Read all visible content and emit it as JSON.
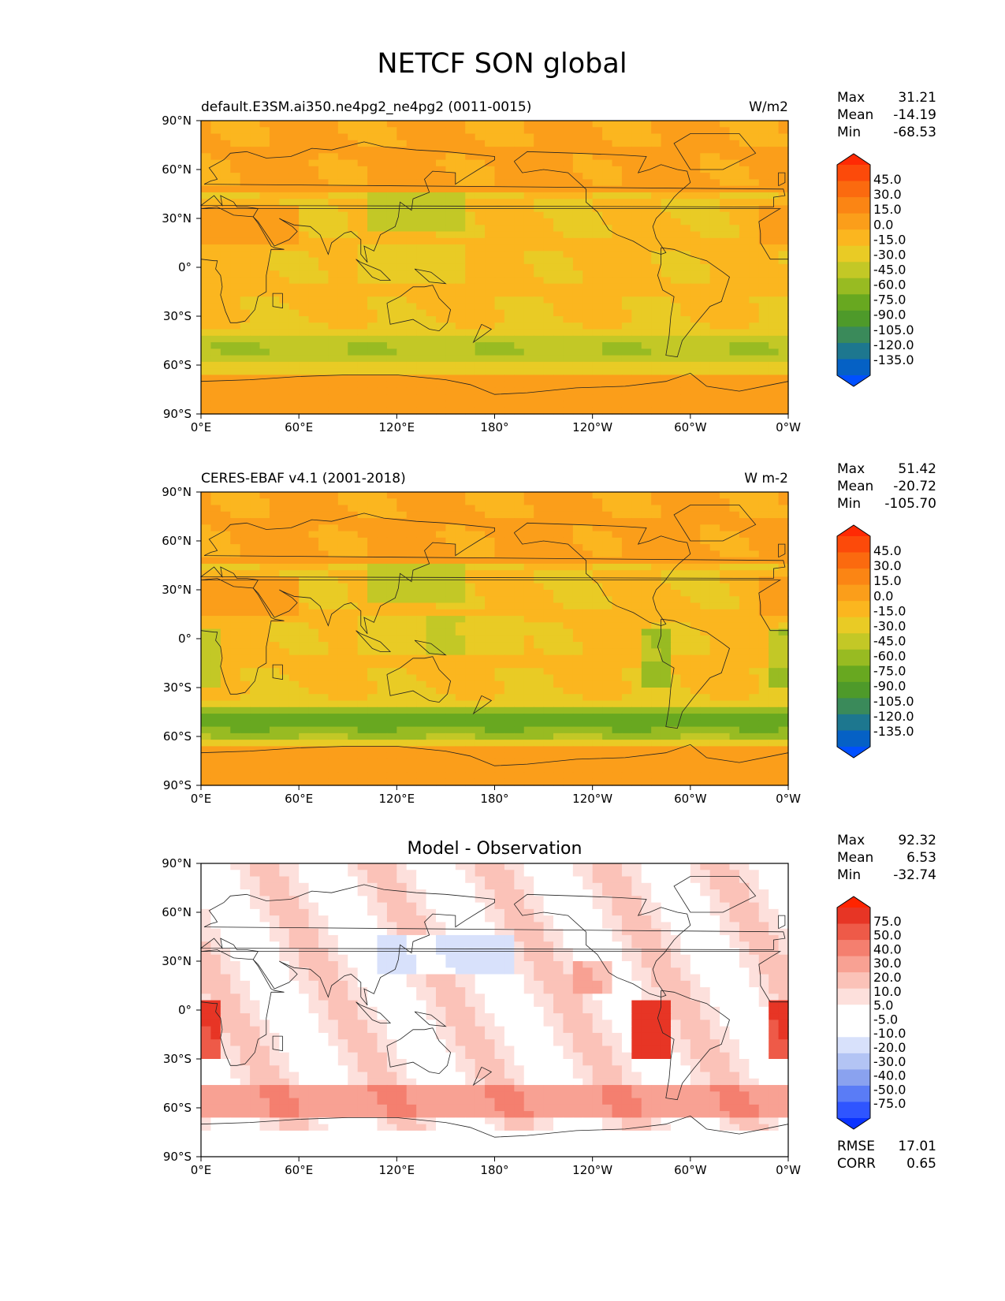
{
  "title": "NETCF SON global",
  "lon_ticks": [
    "0°E",
    "60°E",
    "120°E",
    "180°",
    "120°W",
    "60°W",
    "0°W"
  ],
  "lat_ticks": [
    "90°N",
    "60°N",
    "30°N",
    "0°",
    "30°S",
    "60°S",
    "90°S"
  ],
  "stat_labels": {
    "max": "Max",
    "mean": "Mean",
    "min": "Min",
    "rmse": "RMSE",
    "corr": "CORR"
  },
  "colors": {
    "main_cmap": [
      "#0050ff",
      "#0561c5",
      "#1d778f",
      "#3a8a5a",
      "#4e9a2a",
      "#68a820",
      "#98bb22",
      "#c3c826",
      "#e9cb25",
      "#fbb61f",
      "#fb9e1a",
      "#fb8514",
      "#fb6a0f",
      "#fc4a0a",
      "#ff2a04"
    ],
    "diff_cmap": [
      "#0a32ff",
      "#2f55ff",
      "#5a7cf6",
      "#8aa2ef",
      "#b3c4f4",
      "#d8e1fb",
      "#ffffff",
      "#ffffff",
      "#fde0dc",
      "#fbc2b8",
      "#f8a193",
      "#f47f6f",
      "#ee5a48",
      "#e73525",
      "#ff2400"
    ]
  },
  "chart_data": [
    {
      "type": "heatmap",
      "left_title": "default.E3SM.ai350.ne4pg2_ne4pg2 (0011-0015)",
      "right_title": "W/m2",
      "center_title": "",
      "stats": {
        "max": "31.21",
        "mean": "-14.19",
        "min": "-68.53"
      },
      "colorbar_ticks": [
        "45.0",
        "30.0",
        "15.0",
        "0.0",
        "-15.0",
        "-30.0",
        "-45.0",
        "-60.0",
        "-75.0",
        "-90.0",
        "-105.0",
        "-120.0",
        "-135.0"
      ],
      "levels": [
        -135,
        -120,
        -105,
        -90,
        -75,
        -60,
        -45,
        -30,
        -15,
        0,
        15,
        30,
        45
      ]
    },
    {
      "type": "heatmap",
      "left_title": "CERES-EBAF v4.1 (2001-2018)",
      "right_title": "W m-2",
      "center_title": "",
      "stats": {
        "max": "51.42",
        "mean": "-20.72",
        "min": "-105.70"
      },
      "colorbar_ticks": [
        "45.0",
        "30.0",
        "15.0",
        "0.0",
        "-15.0",
        "-30.0",
        "-45.0",
        "-60.0",
        "-75.0",
        "-90.0",
        "-105.0",
        "-120.0",
        "-135.0"
      ],
      "levels": [
        -135,
        -120,
        -105,
        -90,
        -75,
        -60,
        -45,
        -30,
        -15,
        0,
        15,
        30,
        45
      ]
    },
    {
      "type": "heatmap",
      "left_title": "",
      "right_title": "",
      "center_title": "Model - Observation",
      "stats": {
        "max": "92.32",
        "mean": "6.53",
        "min": "-32.74",
        "rmse": "17.01",
        "corr": "0.65"
      },
      "colorbar_ticks": [
        "75.0",
        "50.0",
        "40.0",
        "30.0",
        "20.0",
        "10.0",
        "5.0",
        "-5.0",
        "-10.0",
        "-20.0",
        "-30.0",
        "-40.0",
        "-50.0",
        "-75.0"
      ],
      "levels": [
        -75,
        -50,
        -40,
        -30,
        -20,
        -10,
        -5,
        5,
        10,
        20,
        30,
        40,
        50,
        75
      ]
    }
  ]
}
